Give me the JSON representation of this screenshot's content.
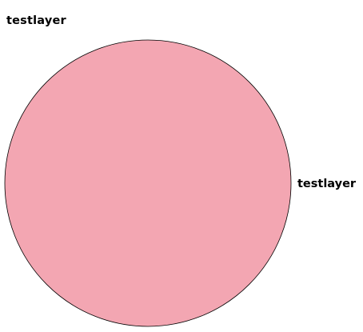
{
  "chart_data": {
    "type": "pie",
    "title": "testlayer",
    "categories": [
      "testlayer"
    ],
    "values": [
      1
    ],
    "colors": [
      "#f3a6b2"
    ],
    "edge_color": "#000000",
    "legend": "none"
  }
}
